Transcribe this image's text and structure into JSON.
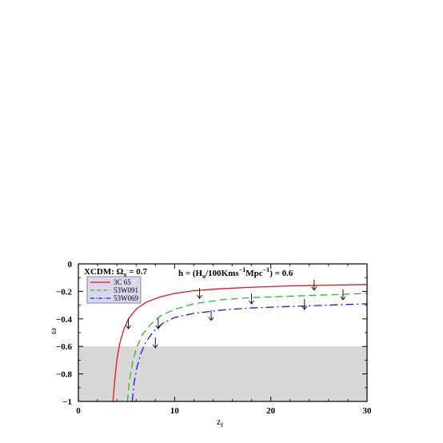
{
  "chart_data": {
    "type": "line",
    "xlim": [
      0,
      30
    ],
    "ylim": [
      -1,
      0
    ],
    "x_ticks": [
      0,
      10,
      20,
      30
    ],
    "x_tick_labels": [
      "0",
      "10",
      "20",
      "30"
    ],
    "y_ticks": [
      0,
      -0.2,
      -0.4,
      -0.6,
      -0.8,
      -1
    ],
    "y_tick_labels": [
      "0",
      "−0.2",
      "−0.4",
      "−0.6",
      "−0.8",
      "−1"
    ],
    "xlabel": "z",
    "xlabel_sub": "f",
    "ylabel": "ω",
    "shaded_region": {
      "y_from": -1,
      "y_to": -0.6,
      "color": "#d8d8d8"
    },
    "annotation": {
      "prefix": "h = (H",
      "sub": "o",
      "mid1": "/100Kms",
      "sup1": "−1",
      "mid2": "Mpc",
      "sup2": "−1",
      "suffix": ") = 0.6"
    },
    "legend_title": {
      "prefix": "XCDM: Ω",
      "sub": "x",
      "suffix": " = 0.7"
    },
    "series": [
      {
        "name": "3C 65",
        "color": "#e8141b",
        "dash": "",
        "x": [
          3.6,
          3.8,
          4.0,
          4.3,
          4.7,
          5.2,
          6.0,
          7.0,
          8.5,
          10,
          12,
          15,
          18,
          22,
          26,
          30
        ],
        "y": [
          -1.0,
          -0.83,
          -0.7,
          -0.58,
          -0.48,
          -0.4,
          -0.33,
          -0.28,
          -0.24,
          -0.215,
          -0.195,
          -0.18,
          -0.17,
          -0.16,
          -0.155,
          -0.15
        ]
      },
      {
        "name": "53W091",
        "color": "#2eb82e",
        "dash": "9,5",
        "x": [
          5.1,
          5.3,
          5.6,
          6.0,
          6.6,
          7.5,
          8.5,
          10,
          12,
          15,
          18,
          22,
          26,
          30
        ],
        "y": [
          -1.0,
          -0.85,
          -0.73,
          -0.62,
          -0.52,
          -0.44,
          -0.38,
          -0.33,
          -0.29,
          -0.26,
          -0.245,
          -0.235,
          -0.225,
          -0.215
        ]
      },
      {
        "name": "53W069",
        "color": "#1a1adf",
        "dash": "10,4,2,4",
        "x": [
          5.6,
          5.8,
          6.1,
          6.5,
          7.0,
          7.8,
          8.8,
          10,
          12,
          15,
          18,
          22,
          26,
          30
        ],
        "y": [
          -1.0,
          -0.86,
          -0.75,
          -0.65,
          -0.57,
          -0.49,
          -0.43,
          -0.39,
          -0.36,
          -0.335,
          -0.32,
          -0.31,
          -0.3,
          -0.29
        ]
      }
    ],
    "upper_limit_arrows": [
      {
        "x": 5.2,
        "y": -0.43
      },
      {
        "x": 8.3,
        "y": -0.43
      },
      {
        "x": 8.0,
        "y": -0.57
      },
      {
        "x": 12.6,
        "y": -0.21
      },
      {
        "x": 13.8,
        "y": -0.37
      },
      {
        "x": 18.0,
        "y": -0.25
      },
      {
        "x": 23.5,
        "y": -0.29
      },
      {
        "x": 24.5,
        "y": -0.15
      },
      {
        "x": 27.5,
        "y": -0.22
      }
    ],
    "legend_position": "top-left",
    "grid": false
  }
}
